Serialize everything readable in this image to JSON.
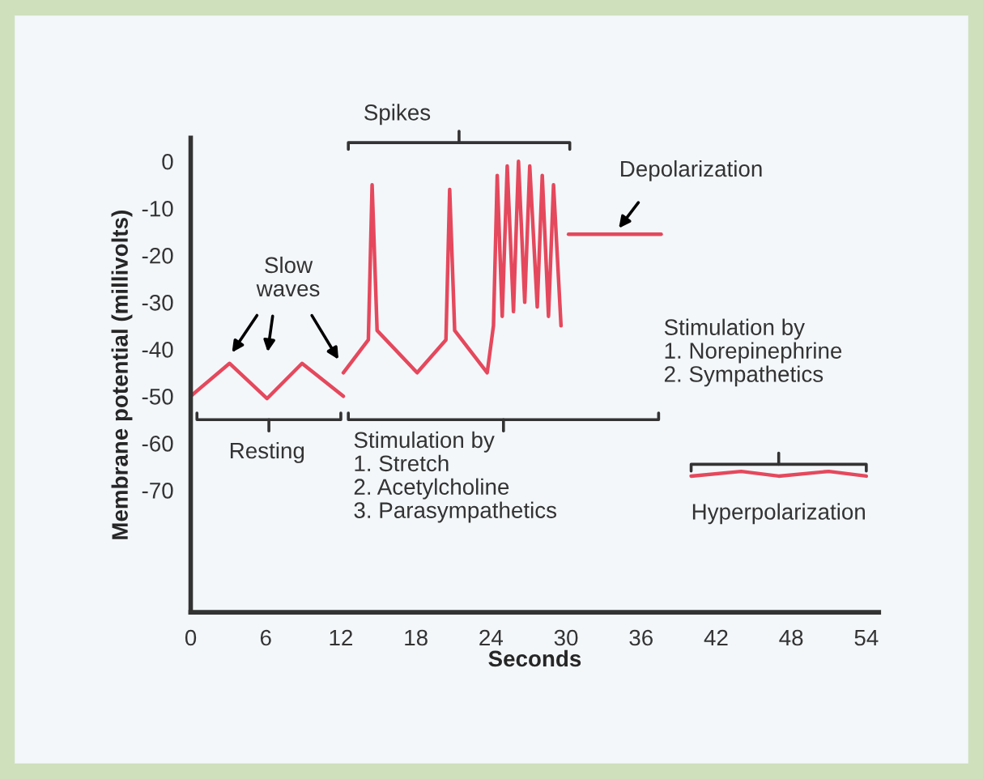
{
  "chart_data": {
    "type": "line",
    "xlabel": "Seconds",
    "ylabel": "Membrane potential (millivolts)",
    "xlim": [
      0,
      55
    ],
    "ylim": [
      -96,
      5
    ],
    "xticks": [
      0,
      6,
      12,
      18,
      24,
      30,
      36,
      42,
      48,
      54
    ],
    "yticks": [
      0,
      -10,
      -20,
      -30,
      -40,
      -50,
      -60,
      -70
    ],
    "grid": false,
    "legend": false,
    "marker": "none",
    "line_style": "solid",
    "series": [
      {
        "color": "#e5485c",
        "x": [
          0,
          3.1,
          6.1,
          8.9,
          12.2
        ],
        "values": [
          -50,
          -43,
          -50.5,
          -43,
          -50
        ]
      },
      {
        "color": "#e5485c",
        "x": [
          12.2,
          14.2,
          14.5,
          14.9,
          18.1,
          20.4,
          20.7,
          21.1,
          23.7,
          24.2,
          24.5,
          24.9,
          25.3,
          25.8,
          26.2,
          26.7,
          27.1,
          27.7,
          28.1,
          28.6,
          29.0,
          29.6
        ],
        "values": [
          -45,
          -38,
          -5,
          -36,
          -45,
          -38,
          -6,
          -36,
          -45,
          -35,
          -3,
          -33,
          -1,
          -32,
          0,
          -30,
          -1,
          -31,
          -3,
          -33,
          -5,
          -35
        ]
      },
      {
        "color": "#e5485c",
        "x": [
          30.2,
          37.6
        ],
        "values": [
          -15.5,
          -15.5
        ]
      },
      {
        "color": "#e5485c",
        "x": [
          40,
          44,
          47,
          51,
          54
        ],
        "values": [
          -67,
          -66,
          -67,
          -66,
          -67
        ]
      }
    ],
    "annotations": [
      "Slow waves",
      "Spikes",
      "Depolarization",
      "Resting",
      "Stimulation by\n1. Stretch\n2. Acetylcholine\n3. Parasympathetics",
      "Stimulation by\n1. Norepinephrine\n2. Sympathetics",
      "Hyperpolarization"
    ]
  }
}
